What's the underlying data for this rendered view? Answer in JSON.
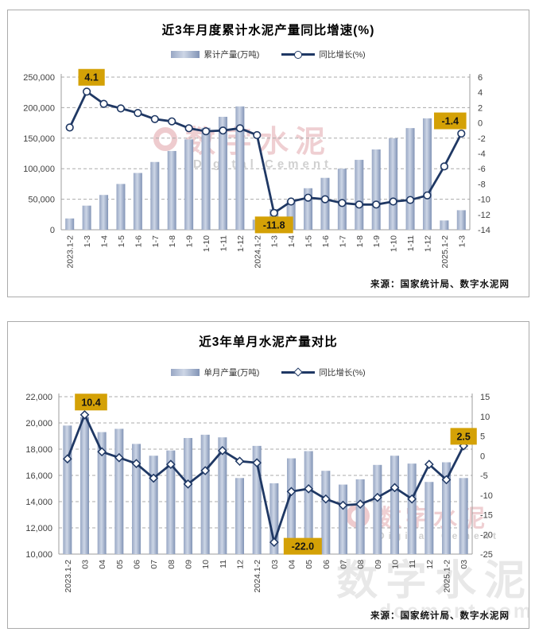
{
  "colors": {
    "line_navy": "#1F3864",
    "bar_light": "#cdd6e6",
    "bar_mid": "#98a7c4",
    "bar_dark": "#8294b6",
    "annotation_bg": "#D4A106",
    "grid": "#ababab",
    "axis": "#9c9c9c"
  },
  "charts": [
    {
      "title": "近3年月度累计水泥产量同比增速(%)",
      "legend": [
        {
          "label": "累计产量(万吨)",
          "type": "bar"
        },
        {
          "label": "同比增长(%)",
          "type": "line-circle"
        }
      ],
      "source": "来源：国家统计局、数字水泥网",
      "watermark": {
        "cn": "数字水泥",
        "en": "Digital Cement"
      },
      "chart_data": {
        "type": "bar+line",
        "categories": [
          "2023.1-2",
          "1-3",
          "1-4",
          "1-5",
          "1-6",
          "1-7",
          "1-8",
          "1-9",
          "1-10",
          "1-11",
          "1-12",
          "2024.1-2",
          "1-3",
          "1-4",
          "1-5",
          "1-6",
          "1-7",
          "1-8",
          "1-9",
          "1-10",
          "1-11",
          "1-12",
          "2025.1-2",
          "1-3"
        ],
        "series": [
          {
            "name": "累计产量(万吨)",
            "type": "bar",
            "axis": "left",
            "values": [
              18500,
              39500,
              57000,
              75000,
              93000,
              111000,
              129000,
              148000,
              167000,
              185000,
              202000,
              16500,
              34000,
              48000,
              68000,
              85000,
              100000,
              114500,
              131500,
              150000,
              166500,
              182500,
              15200,
              32000
            ]
          },
          {
            "name": "同比增长(%)",
            "type": "line",
            "marker": "circle",
            "axis": "right",
            "values": [
              -0.6,
              4.1,
              2.5,
              1.9,
              1.3,
              0.5,
              0.2,
              -0.7,
              -1.1,
              -1.0,
              -0.7,
              -1.6,
              -11.8,
              -10.3,
              -9.8,
              -10.0,
              -10.5,
              -10.7,
              -10.7,
              -10.3,
              -10.1,
              -9.5,
              -5.7,
              -1.4
            ]
          }
        ],
        "left_axis": {
          "min": 0,
          "max": 250000,
          "labels": [
            "0",
            "50,000",
            "100,000",
            "150,000",
            "200,000",
            "250,000"
          ]
        },
        "right_axis": {
          "min": -14,
          "max": 6,
          "labels": [
            "6",
            "4",
            "2",
            "0",
            "-2",
            "-4",
            "-6",
            "-8",
            "-10",
            "-12",
            "-14"
          ]
        },
        "annotations": [
          {
            "category_index": 1,
            "text": "4.1"
          },
          {
            "category_index": 12,
            "text": "-11.8"
          },
          {
            "category_index": 23,
            "text": "-1.4"
          }
        ],
        "grid": "horizontal-dashed",
        "legend_position": "top"
      }
    },
    {
      "title": "近3年单月水泥产量对比",
      "legend": [
        {
          "label": "单月产量(万吨)",
          "type": "bar"
        },
        {
          "label": "同比增长(%)",
          "type": "line-diamond"
        }
      ],
      "source": "来源：国家统计局、数字水泥网",
      "watermark": {
        "cn": "数字水泥",
        "en": "Digital Cement"
      },
      "watermark_gray": {
        "cn": "数字水泥",
        "site": "dcement.com"
      },
      "chart_data": {
        "type": "bar+line",
        "categories": [
          "2023.1-2",
          "03",
          "04",
          "05",
          "06",
          "07",
          "08",
          "09",
          "10",
          "11",
          "12",
          "2024.1-2",
          "03",
          "04",
          "05",
          "06",
          "07",
          "08",
          "09",
          "10",
          "11",
          "12",
          "2025.1-2",
          "03"
        ],
        "series": [
          {
            "name": "单月产量(万吨)",
            "type": "bar",
            "axis": "left",
            "values": [
              19800,
              20450,
              19300,
              19550,
              18400,
              17500,
              17900,
              18850,
              19100,
              18900,
              15800,
              18250,
              15400,
              17300,
              17850,
              16350,
              15300,
              15700,
              16800,
              17500,
              16900,
              15500,
              17000,
              15800
            ]
          },
          {
            "name": "同比增长(%)",
            "type": "line",
            "marker": "diamond",
            "axis": "right",
            "values": [
              -0.8,
              10.4,
              1.0,
              -0.5,
              -2.0,
              -5.7,
              -2.2,
              -7.2,
              -3.8,
              1.3,
              -1.4,
              -1.8,
              -22.0,
              -9.1,
              -8.4,
              -11.0,
              -12.6,
              -12.3,
              -10.6,
              -8.1,
              -11.0,
              -2.2,
              -6.1,
              2.5
            ]
          }
        ],
        "left_axis": {
          "min": 10000,
          "max": 22000,
          "labels": [
            "10,000",
            "12,000",
            "14,000",
            "16,000",
            "18,000",
            "20,000",
            "22,000"
          ]
        },
        "right_axis": {
          "min": -25,
          "max": 15,
          "labels": [
            "15",
            "10",
            "5",
            "0",
            "-5",
            "-10",
            "-15",
            "-20",
            "-25"
          ]
        },
        "annotations": [
          {
            "category_index": 1,
            "text": "10.4"
          },
          {
            "category_index": 12,
            "text": "-22.0"
          },
          {
            "category_index": 23,
            "text": "2.5"
          }
        ],
        "grid": "horizontal-dashed",
        "legend_position": "top"
      }
    }
  ]
}
